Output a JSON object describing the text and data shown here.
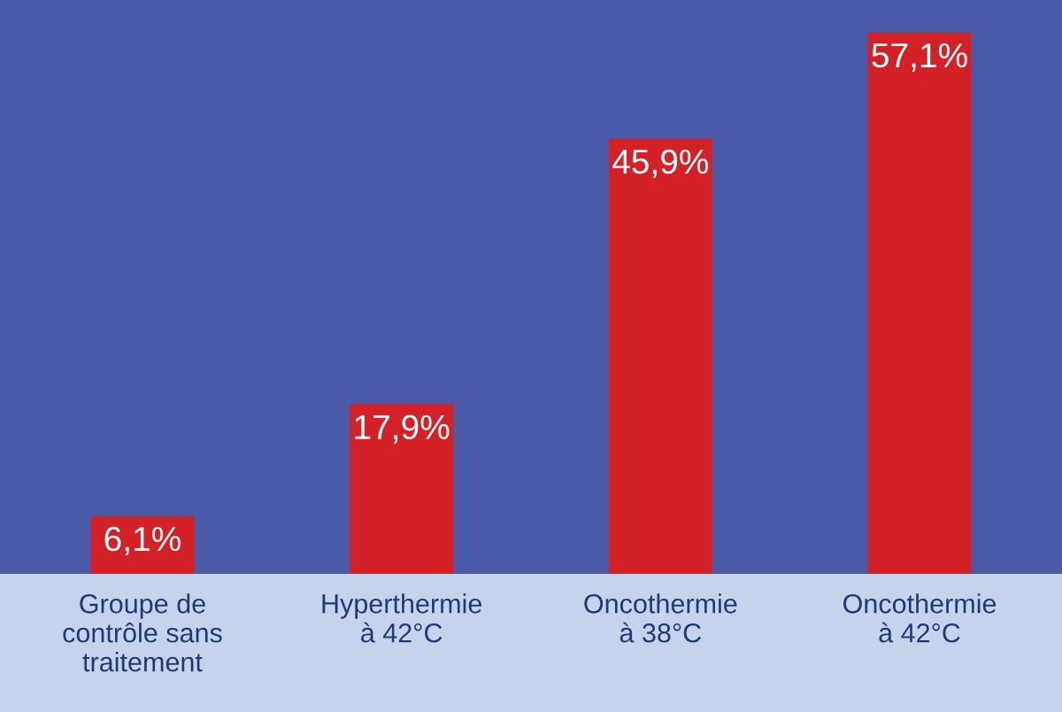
{
  "chart_data": {
    "type": "bar",
    "categories": [
      "Groupe de\ncontrôle sans\ntraitement",
      "Hyperthermie\nà 42°C",
      "Oncothermie\nà 38°C",
      "Oncothermie\nà 42°C"
    ],
    "values": [
      6.1,
      17.9,
      45.9,
      57.1
    ],
    "value_labels": [
      "6,1%",
      "17,9%",
      "45,9%",
      "57,1%"
    ],
    "color": "#d42027",
    "grid": false
  }
}
